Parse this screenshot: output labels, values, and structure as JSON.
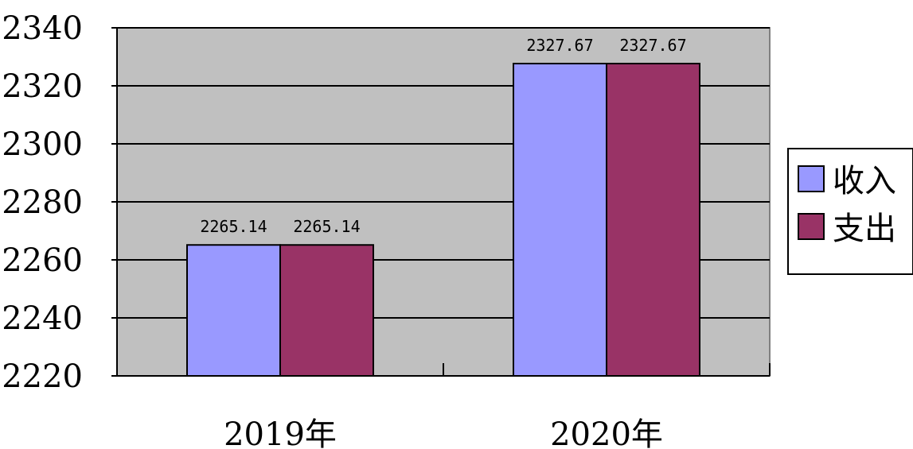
{
  "chart_data": {
    "type": "bar",
    "categories": [
      "2019年",
      "2020年"
    ],
    "series": [
      {
        "name": "收入",
        "values": [
          2265.14,
          2327.67
        ],
        "color": "#9999ff"
      },
      {
        "name": "支出",
        "values": [
          2265.14,
          2327.67
        ],
        "color": "#993366"
      }
    ],
    "data_labels": [
      [
        "2265.14",
        "2327.67"
      ],
      [
        "2265.14",
        "2327.67"
      ]
    ],
    "ylim": [
      2220,
      2340
    ],
    "yticks": [
      2220,
      2240,
      2260,
      2280,
      2300,
      2320,
      2340
    ],
    "grid": true,
    "legend": "right",
    "plot_background": "#c0c0c0",
    "title": "",
    "xlabel": "",
    "ylabel": ""
  }
}
